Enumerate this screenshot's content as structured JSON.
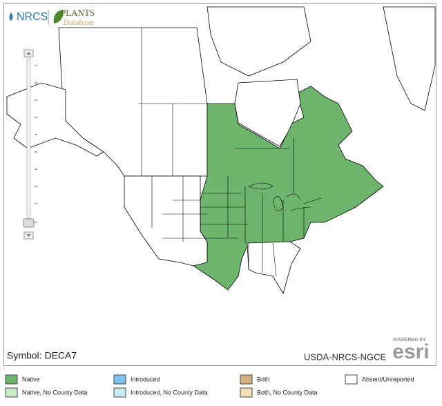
{
  "header": {
    "agency": "NRCS",
    "plants": "PLANTS",
    "database": "Database"
  },
  "map": {
    "symbol": "Symbol: DECA7",
    "credit": "USDA-NRCS-NGCE",
    "powered_by": "POWERED BY",
    "esri": "esri"
  },
  "legend": {
    "items": [
      {
        "label": "Native",
        "color": "#6db56d"
      },
      {
        "label": "Introduced",
        "color": "#7fc4f0"
      },
      {
        "label": "Both",
        "color": "#d2b07f"
      },
      {
        "label": "Absent/Unreported",
        "color": "#ffffff"
      },
      {
        "label": "Native, No County Data",
        "color": "#c8ecc8"
      },
      {
        "label": "Introduced, No County Data",
        "color": "#c6ecf8"
      },
      {
        "label": "Both, No County Data",
        "color": "#f2dfb8"
      }
    ]
  }
}
